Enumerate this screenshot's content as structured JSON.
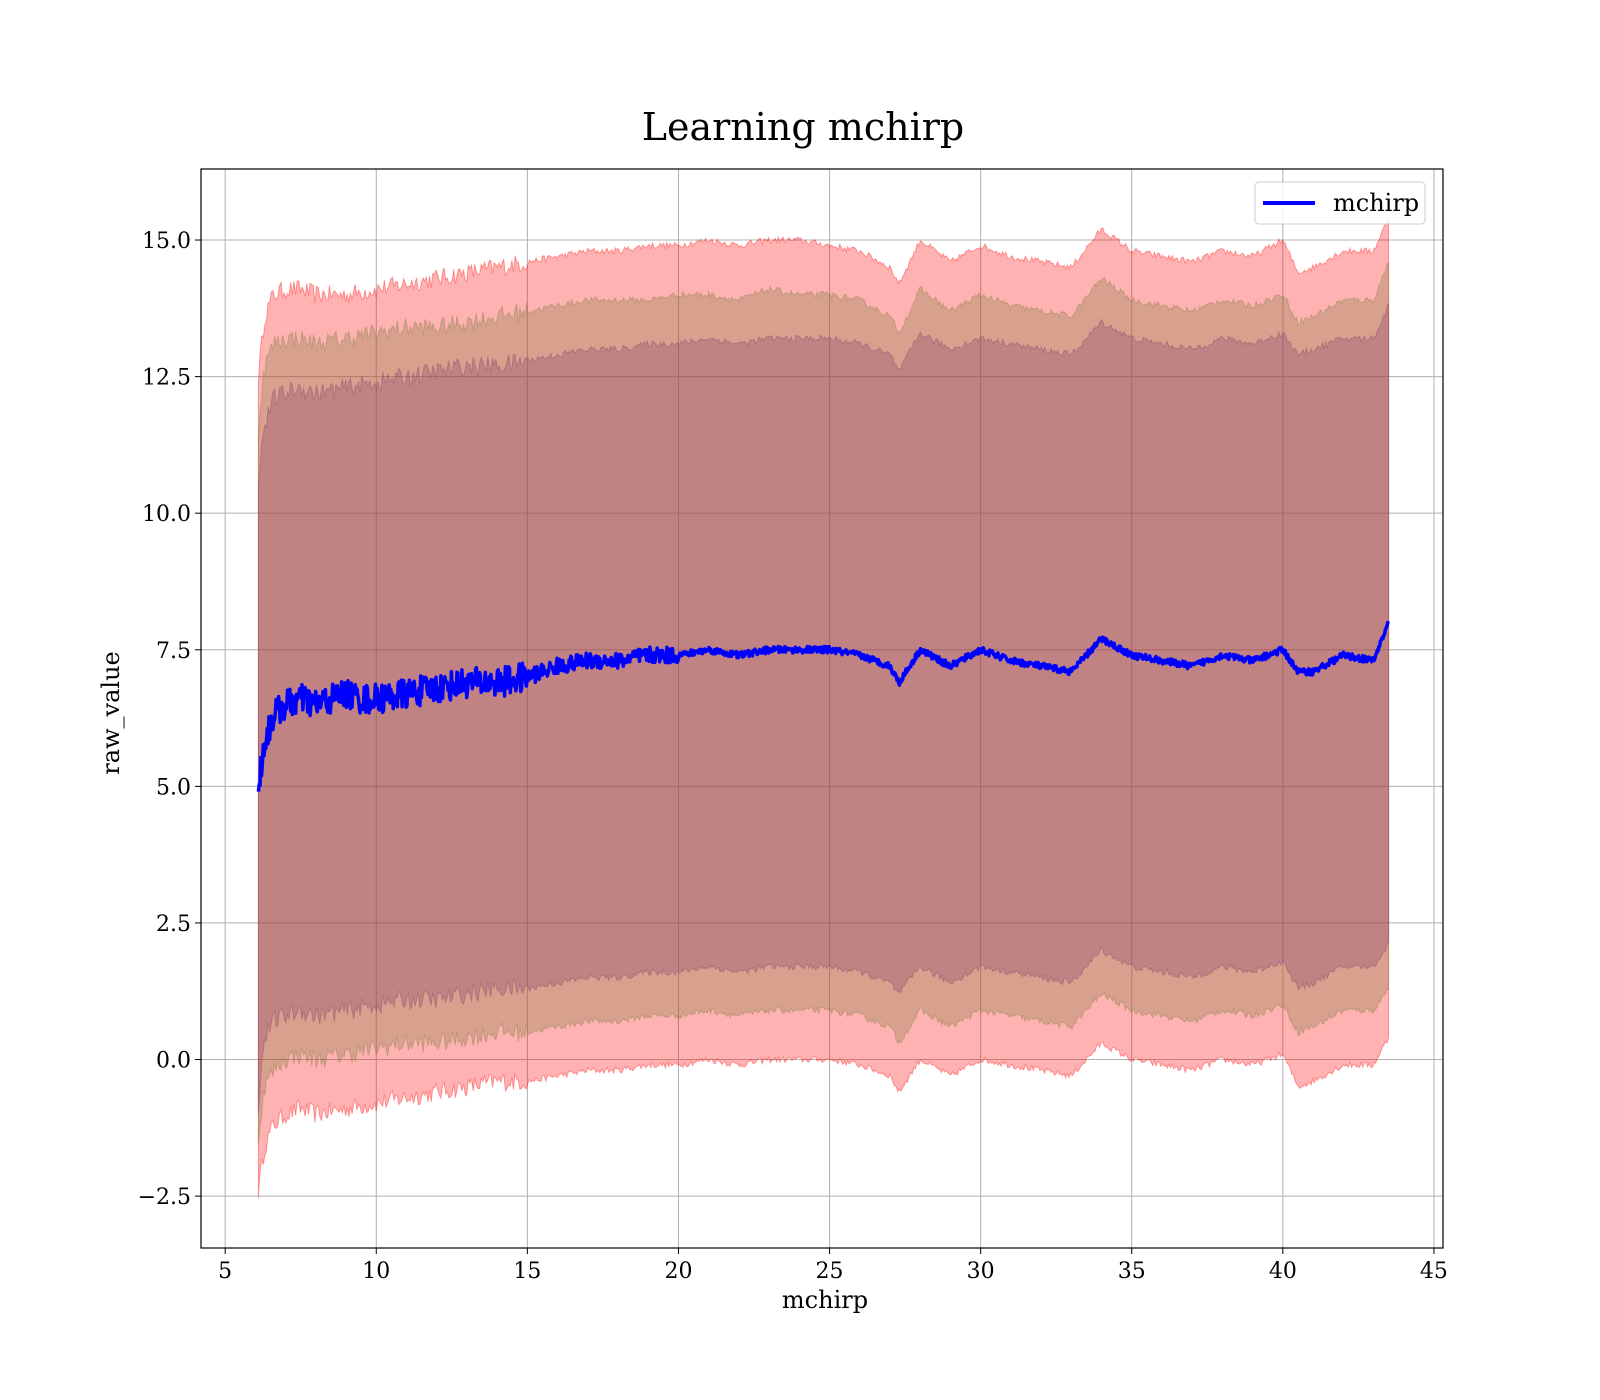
{
  "chart_data": {
    "type": "line",
    "title": "Learning mchirp",
    "xlabel": "mchirp",
    "ylabel": "raw_value",
    "xlim": [
      4.2,
      45.3
    ],
    "ylim": [
      -3.45,
      16.3
    ],
    "xticks": [
      5,
      10,
      15,
      20,
      25,
      30,
      35,
      40,
      45
    ],
    "yticks": [
      -2.5,
      0.0,
      2.5,
      5.0,
      7.5,
      10.0,
      12.5,
      15.0
    ],
    "ytick_labels": [
      "−2.5",
      "0.0",
      "2.5",
      "5.0",
      "7.5",
      "10.0",
      "12.5",
      "15.0"
    ],
    "grid": true,
    "legend_position": "top-right",
    "series": [
      {
        "name": "mchirp",
        "color": "#0000ff",
        "x": [
          6.1,
          6.3,
          6.6,
          7.0,
          7.5,
          8.0,
          8.5,
          9.0,
          9.5,
          10.0,
          11.0,
          12.0,
          13.0,
          14.0,
          15.0,
          16.0,
          17.0,
          18.0,
          19.0,
          20.0,
          21.0,
          22.0,
          23.0,
          24.0,
          25.0,
          26.0,
          27.0,
          27.3,
          28.0,
          29.0,
          30.0,
          31.0,
          32.0,
          33.0,
          34.0,
          35.0,
          36.0,
          37.0,
          38.0,
          39.0,
          40.0,
          40.5,
          41.0,
          42.0,
          43.0,
          43.5
        ],
        "y": [
          5.0,
          5.8,
          6.3,
          6.5,
          6.6,
          6.5,
          6.6,
          6.7,
          6.6,
          6.6,
          6.7,
          6.8,
          6.9,
          6.9,
          7.0,
          7.2,
          7.3,
          7.3,
          7.4,
          7.4,
          7.5,
          7.4,
          7.5,
          7.5,
          7.5,
          7.4,
          7.2,
          6.9,
          7.5,
          7.2,
          7.5,
          7.3,
          7.2,
          7.1,
          7.7,
          7.4,
          7.3,
          7.2,
          7.4,
          7.3,
          7.5,
          7.1,
          7.1,
          7.4,
          7.3,
          8.0
        ]
      }
    ],
    "bands": [
      {
        "color": "#ff0000",
        "x": [
          6.1,
          6.3,
          6.6,
          7.0,
          7.5,
          8.0,
          9.0,
          10.0,
          11.0,
          12.0,
          13.0,
          14.0,
          15.0,
          16.0,
          17.0,
          18.0,
          19.0,
          20.0,
          21.0,
          22.0,
          23.0,
          24.0,
          25.0,
          26.0,
          27.0,
          27.3,
          28.0,
          29.0,
          30.0,
          31.0,
          32.0,
          33.0,
          34.0,
          35.0,
          36.0,
          37.0,
          38.0,
          39.0,
          40.0,
          40.5,
          41.0,
          42.0,
          43.0,
          43.5
        ],
        "upper": [
          12.5,
          13.6,
          14.0,
          14.1,
          14.1,
          14.0,
          14.0,
          14.1,
          14.2,
          14.3,
          14.4,
          14.5,
          14.6,
          14.7,
          14.8,
          14.8,
          14.9,
          14.9,
          15.0,
          14.9,
          15.0,
          15.0,
          14.9,
          14.8,
          14.5,
          14.2,
          15.0,
          14.6,
          14.9,
          14.7,
          14.6,
          14.5,
          15.2,
          14.8,
          14.7,
          14.6,
          14.8,
          14.7,
          15.0,
          14.4,
          14.5,
          14.8,
          14.8,
          15.4
        ],
        "lower": [
          -2.4,
          -1.6,
          -1.2,
          -1.0,
          -0.9,
          -1.0,
          -0.9,
          -0.8,
          -0.7,
          -0.6,
          -0.5,
          -0.4,
          -0.4,
          -0.3,
          -0.2,
          -0.2,
          -0.1,
          -0.1,
          0.0,
          -0.1,
          0.0,
          0.0,
          0.0,
          -0.1,
          -0.3,
          -0.6,
          0.0,
          -0.3,
          0.0,
          -0.1,
          -0.2,
          -0.3,
          0.3,
          0.0,
          -0.1,
          -0.2,
          0.0,
          -0.1,
          0.1,
          -0.5,
          -0.4,
          -0.1,
          -0.1,
          0.4
        ]
      },
      {
        "color": "#7a7a3a",
        "x": [
          6.1,
          6.3,
          6.6,
          7.0,
          7.5,
          8.0,
          9.0,
          10.0,
          11.0,
          12.0,
          13.0,
          14.0,
          15.0,
          16.0,
          17.0,
          18.0,
          19.0,
          20.0,
          21.0,
          22.0,
          23.0,
          24.0,
          25.0,
          26.0,
          27.0,
          27.3,
          28.0,
          29.0,
          30.0,
          31.0,
          32.0,
          33.0,
          34.0,
          35.0,
          36.0,
          37.0,
          38.0,
          39.0,
          40.0,
          40.5,
          41.0,
          42.0,
          43.0,
          43.5
        ],
        "upper": [
          11.6,
          12.7,
          13.1,
          13.2,
          13.2,
          13.1,
          13.2,
          13.3,
          13.4,
          13.4,
          13.5,
          13.6,
          13.7,
          13.8,
          13.9,
          13.9,
          13.9,
          14.0,
          14.0,
          13.9,
          14.1,
          14.0,
          14.0,
          13.9,
          13.6,
          13.3,
          14.1,
          13.7,
          14.0,
          13.8,
          13.7,
          13.6,
          14.3,
          13.9,
          13.8,
          13.7,
          13.9,
          13.8,
          14.0,
          13.5,
          13.6,
          13.9,
          13.9,
          14.6
        ],
        "lower": [
          -1.4,
          -0.5,
          -0.2,
          0.0,
          0.1,
          0.0,
          0.1,
          0.2,
          0.3,
          0.3,
          0.4,
          0.5,
          0.5,
          0.6,
          0.7,
          0.7,
          0.8,
          0.8,
          0.9,
          0.8,
          0.9,
          0.9,
          0.9,
          0.8,
          0.6,
          0.3,
          0.9,
          0.6,
          0.9,
          0.8,
          0.7,
          0.6,
          1.2,
          0.9,
          0.8,
          0.7,
          0.9,
          0.8,
          1.0,
          0.5,
          0.6,
          0.9,
          0.9,
          1.3
        ]
      },
      {
        "color": "#8a3a6a",
        "x": [
          6.1,
          6.3,
          6.6,
          7.0,
          7.5,
          8.0,
          9.0,
          10.0,
          11.0,
          12.0,
          13.0,
          14.0,
          15.0,
          16.0,
          17.0,
          18.0,
          19.0,
          20.0,
          21.0,
          22.0,
          23.0,
          24.0,
          25.0,
          26.0,
          27.0,
          27.3,
          28.0,
          29.0,
          30.0,
          31.0,
          32.0,
          33.0,
          34.0,
          35.0,
          36.0,
          37.0,
          38.0,
          39.0,
          40.0,
          40.5,
          41.0,
          42.0,
          43.0,
          43.5
        ],
        "upper": [
          10.7,
          11.6,
          12.1,
          12.2,
          12.3,
          12.2,
          12.3,
          12.4,
          12.5,
          12.6,
          12.7,
          12.7,
          12.8,
          12.9,
          13.0,
          13.0,
          13.1,
          13.1,
          13.2,
          13.1,
          13.2,
          13.2,
          13.2,
          13.1,
          12.9,
          12.6,
          13.3,
          13.0,
          13.2,
          13.1,
          13.0,
          12.9,
          13.5,
          13.2,
          13.1,
          13.0,
          13.2,
          13.1,
          13.3,
          12.9,
          13.0,
          13.2,
          13.2,
          13.8
        ],
        "lower": [
          -0.8,
          0.4,
          0.7,
          0.8,
          0.9,
          0.8,
          0.9,
          1.0,
          1.1,
          1.1,
          1.2,
          1.3,
          1.3,
          1.4,
          1.5,
          1.5,
          1.6,
          1.6,
          1.7,
          1.6,
          1.7,
          1.7,
          1.7,
          1.6,
          1.4,
          1.2,
          1.7,
          1.4,
          1.7,
          1.6,
          1.5,
          1.4,
          2.0,
          1.7,
          1.6,
          1.5,
          1.7,
          1.6,
          1.8,
          1.3,
          1.4,
          1.7,
          1.7,
          2.1
        ]
      }
    ]
  }
}
